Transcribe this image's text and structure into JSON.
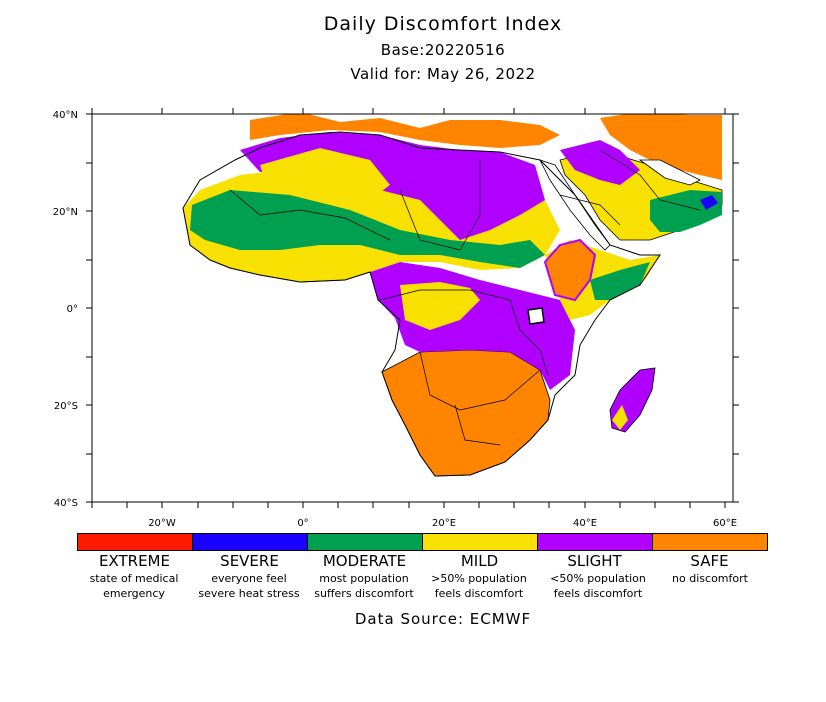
{
  "header": {
    "title": "Daily Discomfort Index",
    "base": "Base:20220516",
    "valid": "Valid for: May 26, 2022"
  },
  "map": {
    "lat_labels": [
      "40°N",
      "20°N",
      "0°",
      "20°S",
      "40°S"
    ],
    "lon_labels": [
      "20°W",
      "0°",
      "20°E",
      "40°E",
      "60°E"
    ]
  },
  "legend": [
    {
      "name": "EXTREME",
      "desc1": "state of medical",
      "desc2": "emergency",
      "color": "#ff1a00"
    },
    {
      "name": "SEVERE",
      "desc1": "everyone feel",
      "desc2": "severe heat stress",
      "color": "#1a00ff"
    },
    {
      "name": "MODERATE",
      "desc1": "most population",
      "desc2": "suffers discomfort",
      "color": "#00a050"
    },
    {
      "name": "MILD",
      "desc1": ">50% population",
      "desc2": "feels discomfort",
      "color": "#f8e000"
    },
    {
      "name": "SLIGHT",
      "desc1": "<50% population",
      "desc2": "feels discomfort",
      "color": "#b000ff"
    },
    {
      "name": "SAFE",
      "desc1": "no discomfort",
      "desc2": "",
      "color": "#ff8400"
    }
  ],
  "footer": {
    "source": "Data Source: ECMWF"
  }
}
